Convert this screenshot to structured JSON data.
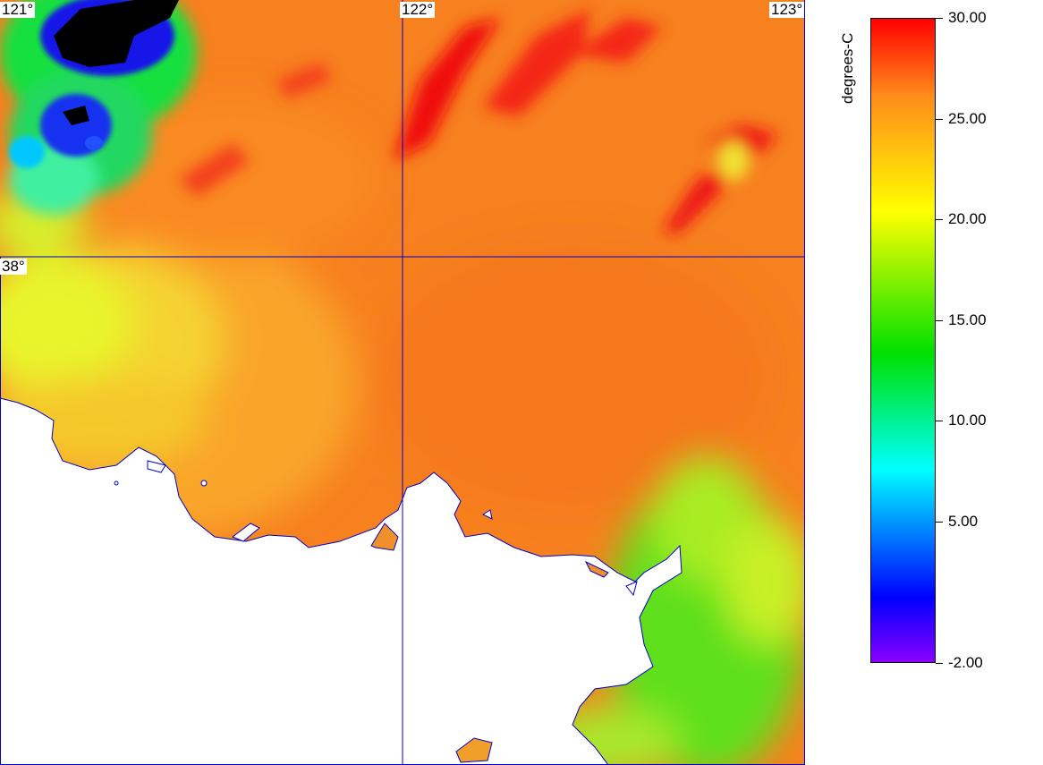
{
  "map": {
    "grid_labels": {
      "lon_121": "121°",
      "lon_122": "122°",
      "lon_123": "123°",
      "lat_38": "38°"
    }
  },
  "legend": {
    "unit": "degrees-C",
    "ticks": [
      "30.00",
      "25.00",
      "20.00",
      "15.00",
      "10.00",
      "5.00",
      "-2.00"
    ],
    "tick_values": [
      30,
      25,
      20,
      15,
      10,
      5,
      -2
    ],
    "range": [
      -2,
      30
    ],
    "colors": {
      "max": "#ff0000",
      "orange": "#ff8c1a",
      "yellow": "#ffff00",
      "green": "#00e000",
      "cyan": "#00ffff",
      "blue": "#0000ff",
      "min": "#8a00ff"
    }
  },
  "colors": {
    "grid_lines": "#0000cc",
    "land": "#ffffff",
    "coastline": "#0000cc",
    "cloud": "#000000"
  }
}
